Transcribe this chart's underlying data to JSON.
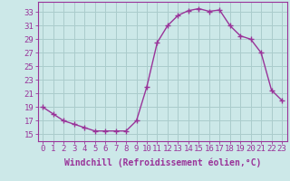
{
  "x": [
    0,
    1,
    2,
    3,
    4,
    5,
    6,
    7,
    8,
    9,
    10,
    11,
    12,
    13,
    14,
    15,
    16,
    17,
    18,
    19,
    20,
    21,
    22,
    23
  ],
  "y": [
    19,
    18,
    17,
    16.5,
    16,
    15.5,
    15.5,
    15.5,
    15.5,
    17,
    22,
    28.5,
    31,
    32.5,
    33.2,
    33.5,
    33.1,
    33.3,
    31,
    29.5,
    29,
    27,
    21.5,
    20
  ],
  "line_color": "#993399",
  "marker": "+",
  "marker_size": 4,
  "bg_color": "#cce8e8",
  "grid_color": "#aacccc",
  "xlabel": "Windchill (Refroidissement éolien,°C)",
  "ylabel_ticks": [
    15,
    17,
    19,
    21,
    23,
    25,
    27,
    29,
    31,
    33
  ],
  "ylim": [
    14.0,
    34.5
  ],
  "xlim": [
    -0.5,
    23.5
  ],
  "axis_color": "#993399",
  "tick_label_color": "#993399",
  "xlabel_color": "#993399",
  "xlabel_fontsize": 7,
  "tick_fontsize": 6.5,
  "line_width": 1.0
}
